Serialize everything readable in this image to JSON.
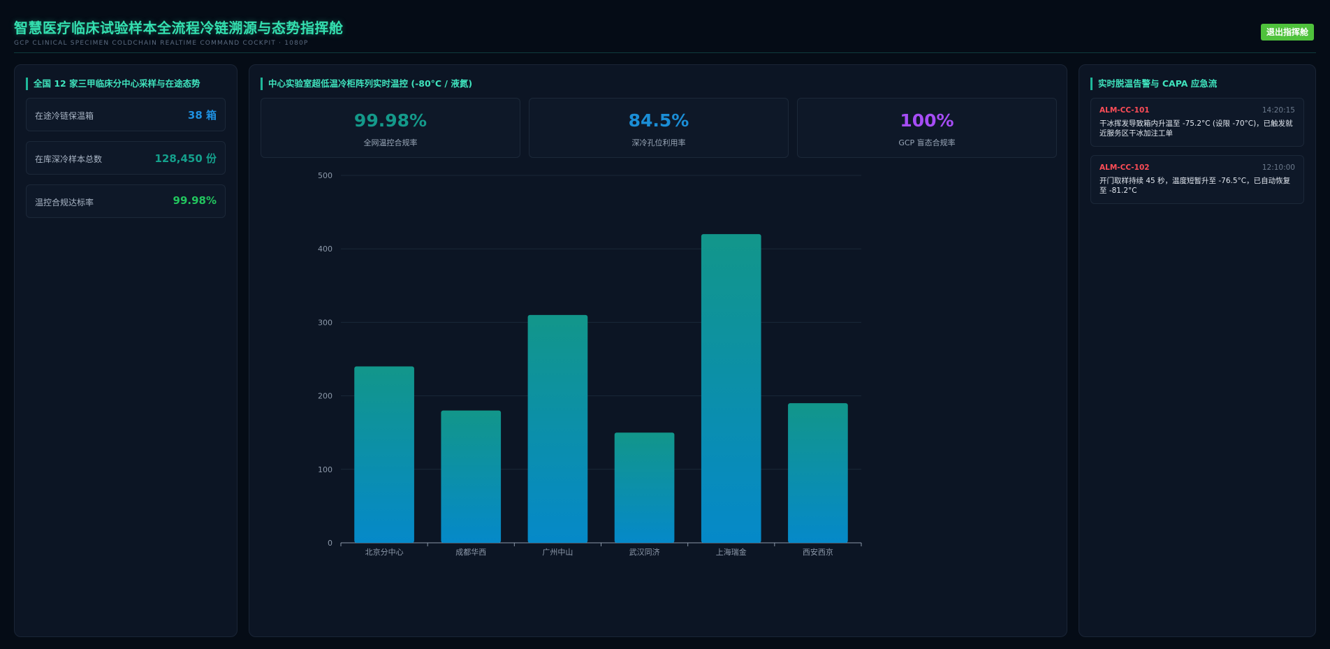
{
  "header": {
    "title": "智慧医疗临床试验样本全流程冷链溯源与态势指挥舱",
    "subtitle": "GCP CLINICAL SPECIMEN COLDCHAIN REALTIME COMMAND COCKPIT · 1080P",
    "exit_label": "退出指挥舱"
  },
  "left": {
    "title": "全国 12 家三甲临床分中心采样与在途态势",
    "stats": [
      {
        "label": "在途冷链保温箱",
        "value": "38 箱",
        "color": "#1e90e0"
      },
      {
        "label": "在库深冷样本总数",
        "value": "128,450 份",
        "color": "#14a08c"
      },
      {
        "label": "温控合规达标率",
        "value": "99.98%",
        "color": "#22c55e"
      }
    ]
  },
  "middle": {
    "title": "中心实验室超低温冷柜阵列实时温控 (-80°C / 液氮)",
    "kpis": [
      {
        "value": "99.98%",
        "label": "全网温控合规率",
        "color": "#14998a"
      },
      {
        "value": "84.5%",
        "label": "深冷孔位利用率",
        "color": "#1b8ed6"
      },
      {
        "value": "100%",
        "label": "GCP 盲态合规率",
        "color": "#a64df5"
      }
    ]
  },
  "right": {
    "title": "实时脱温告警与 CAPA 应急流",
    "alarms": [
      {
        "id": "ALM-CC-101",
        "time": "14:20:15",
        "text": "干冰挥发导致箱内升温至 -75.2°C (设限 -70°C)，已触发就近服务区干冰加注工单"
      },
      {
        "id": "ALM-CC-102",
        "time": "12:10:00",
        "text": "开门取样持续 45 秒，温度短暂升至 -76.5°C，已自动恢复至 -81.2°C"
      }
    ]
  },
  "chart_data": {
    "type": "bar",
    "categories": [
      "北京分中心",
      "成都华西",
      "广州中山",
      "武汉同济",
      "上海瑞金",
      "西安西京"
    ],
    "values": [
      240,
      180,
      310,
      150,
      420,
      190
    ],
    "ylim": [
      0,
      500
    ],
    "yticks": [
      0,
      100,
      200,
      300,
      400,
      500
    ],
    "grid": true,
    "colors": {
      "top": "#12968a",
      "bottom": "#0589c9",
      "grid": "#1a2838",
      "axis": "#8a97a8",
      "tick_text": "#8e9aab"
    }
  }
}
